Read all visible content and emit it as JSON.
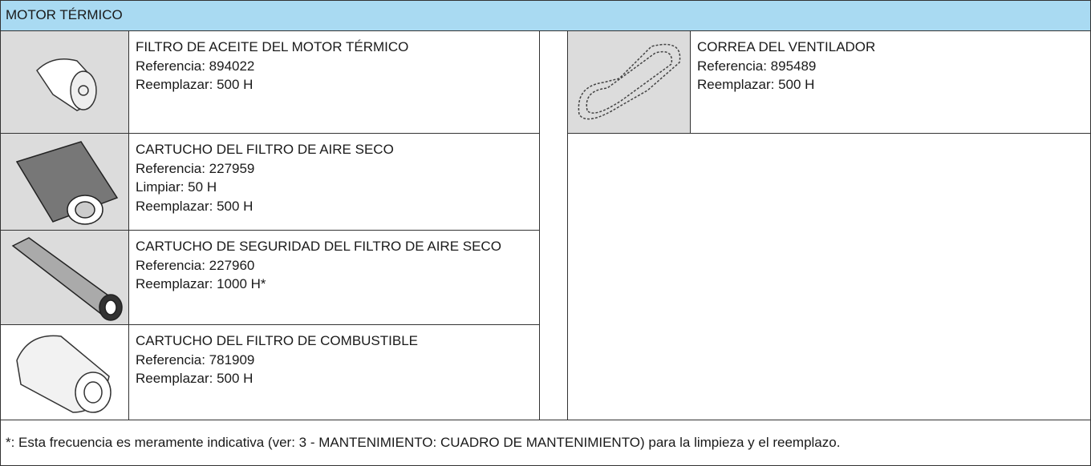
{
  "header": {
    "title": "MOTOR TÉRMICO"
  },
  "left_items": [
    {
      "name": "FILTRO DE ACEITE DEL MOTOR TÉRMICO",
      "details": [
        "Referencia: 894022",
        "Reemplazar: 500 H"
      ]
    },
    {
      "name": "CARTUCHO DEL FILTRO DE AIRE SECO",
      "details": [
        "Referencia: 227959",
        "Limpiar: 50 H",
        "Reemplazar: 500 H"
      ]
    },
    {
      "name": "CARTUCHO DE SEGURIDAD DEL FILTRO DE AIRE SECO",
      "details": [
        "Referencia: 227960",
        "Reemplazar: 1000 H*"
      ]
    },
    {
      "name": "CARTUCHO DEL FILTRO DE COMBUSTIBLE",
      "details": [
        "Referencia: 781909",
        "Reemplazar: 500 H"
      ]
    }
  ],
  "right_items": [
    {
      "name": "CORREA DEL VENTILADOR",
      "details": [
        "Referencia: 895489",
        "Reemplazar: 500 H"
      ]
    }
  ],
  "footer": {
    "note": "*: Esta frecuencia es meramente indicativa (ver: 3 - MANTENIMIENTO: CUADRO DE MANTENIMIENTO) para la limpieza y el reemplazo."
  }
}
